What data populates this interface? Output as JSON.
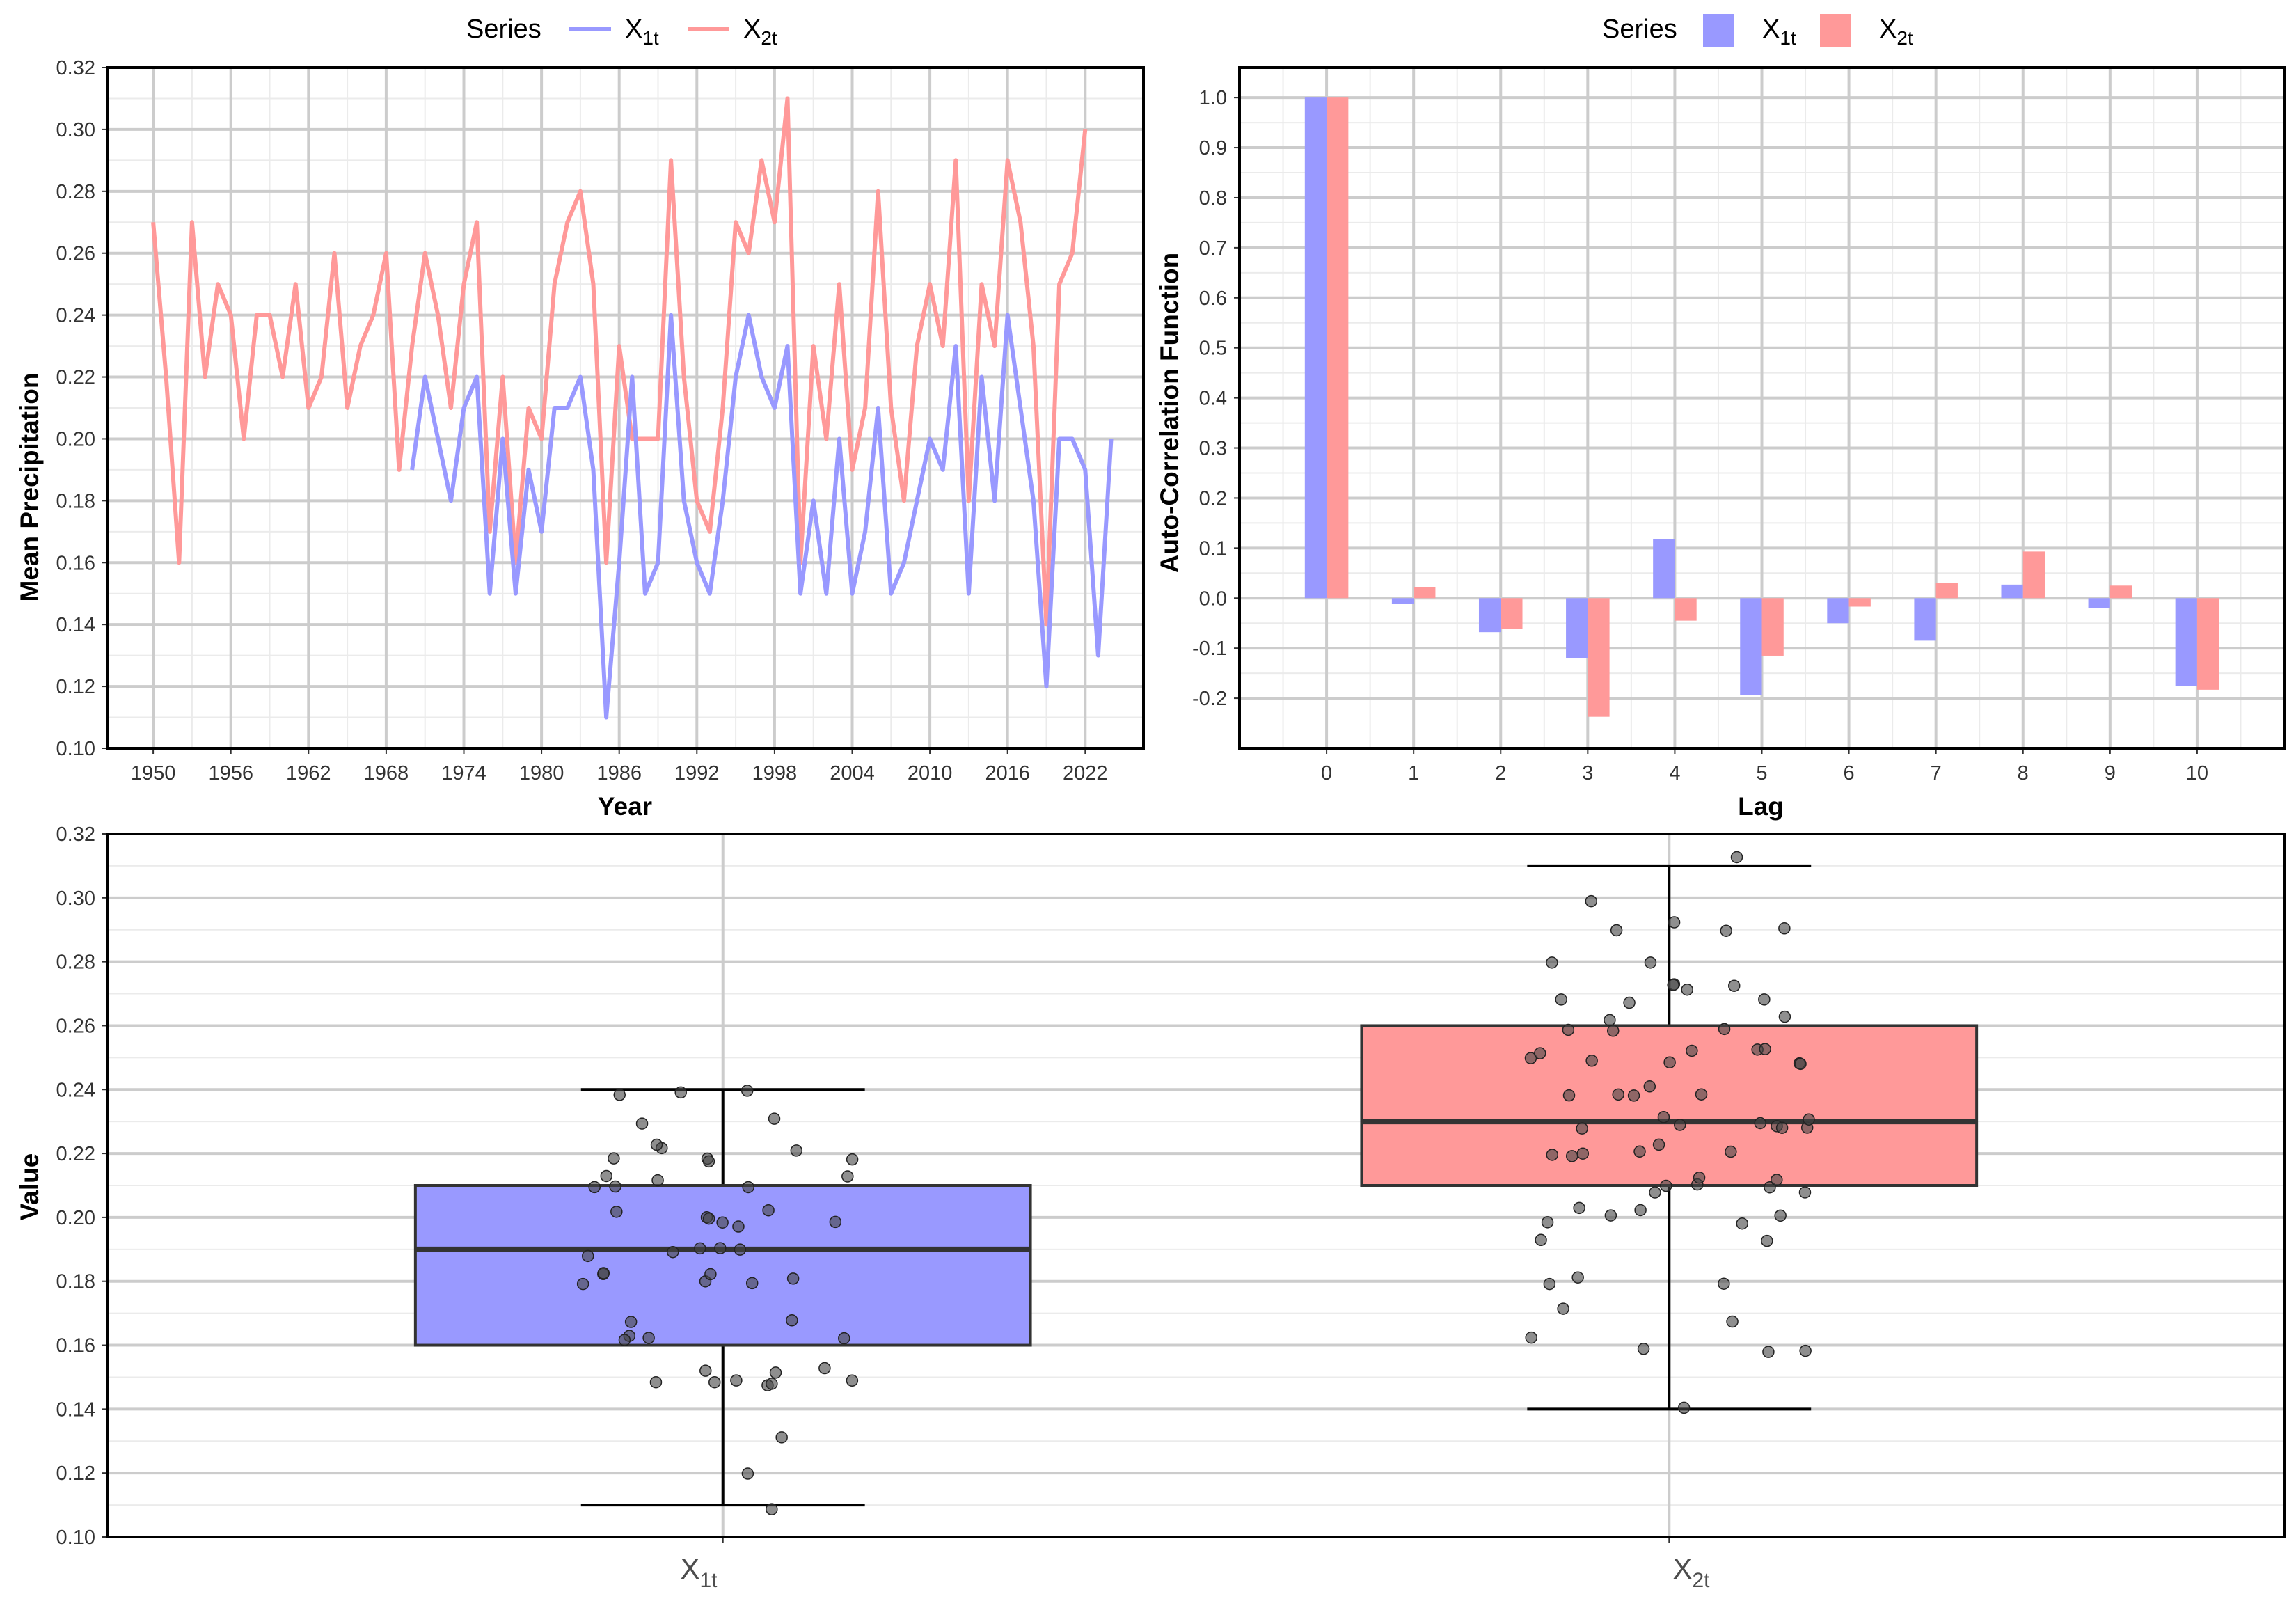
{
  "colors": {
    "x1": "#9999ff",
    "x2": "#ff9999",
    "grid_major": "#cccccc",
    "grid_minor": "#ebebeb",
    "frame": "#000000",
    "point": "#444444"
  },
  "legend": {
    "title": "Series",
    "entries": [
      {
        "base": "X",
        "sub": "1t"
      },
      {
        "base": "X",
        "sub": "2t"
      }
    ]
  },
  "chart_data": [
    {
      "type": "line",
      "id": "timeseries",
      "title": "",
      "xlabel": "Year",
      "ylabel": "Mean Precipitation",
      "xlim": [
        1946.5,
        2026.5
      ],
      "ylim": [
        0.1,
        0.32
      ],
      "xticks": [
        1950,
        1956,
        1962,
        1968,
        1974,
        1980,
        1986,
        1992,
        1998,
        2004,
        2010,
        2016,
        2022
      ],
      "yticks": [
        0.1,
        0.12,
        0.14,
        0.16,
        0.18,
        0.2,
        0.22,
        0.24,
        0.26,
        0.28,
        0.3,
        0.32
      ],
      "series": [
        {
          "name": "X1t",
          "color": "#9999ff",
          "x": [
            1970,
            1971,
            1972,
            1973,
            1974,
            1975,
            1976,
            1977,
            1978,
            1979,
            1980,
            1981,
            1982,
            1983,
            1984,
            1985,
            1986,
            1987,
            1988,
            1989,
            1990,
            1991,
            1992,
            1993,
            1994,
            1995,
            1996,
            1997,
            1998,
            1999,
            2000,
            2001,
            2002,
            2003,
            2004,
            2005,
            2006,
            2007,
            2008,
            2009,
            2010,
            2011,
            2012,
            2013,
            2014,
            2015,
            2016,
            2017,
            2018,
            2019,
            2020,
            2021,
            2022,
            2023,
            2024
          ],
          "values": [
            0.19,
            0.22,
            0.2,
            0.18,
            0.21,
            0.22,
            0.15,
            0.2,
            0.15,
            0.19,
            0.17,
            0.21,
            0.21,
            0.22,
            0.19,
            0.11,
            0.16,
            0.22,
            0.15,
            0.16,
            0.24,
            0.18,
            0.16,
            0.15,
            0.18,
            0.22,
            0.24,
            0.22,
            0.21,
            0.23,
            0.15,
            0.18,
            0.15,
            0.2,
            0.15,
            0.17,
            0.21,
            0.15,
            0.16,
            0.18,
            0.2,
            0.19,
            0.23,
            0.15,
            0.22,
            0.18,
            0.24,
            0.21,
            0.18,
            0.12,
            0.2,
            0.2,
            0.19,
            0.13,
            0.2
          ]
        },
        {
          "name": "X2t",
          "color": "#ff9999",
          "x": [
            1950,
            1951,
            1952,
            1953,
            1954,
            1955,
            1956,
            1957,
            1958,
            1959,
            1960,
            1961,
            1962,
            1963,
            1964,
            1965,
            1966,
            1967,
            1968,
            1969,
            1970,
            1971,
            1972,
            1973,
            1974,
            1975,
            1976,
            1977,
            1978,
            1979,
            1980,
            1981,
            1982,
            1983,
            1984,
            1985,
            1986,
            1987,
            1988,
            1989,
            1990,
            1991,
            1992,
            1993,
            1994,
            1995,
            1996,
            1997,
            1998,
            1999,
            2000,
            2001,
            2002,
            2003,
            2004,
            2005,
            2006,
            2007,
            2008,
            2009,
            2010,
            2011,
            2012,
            2013,
            2014,
            2015,
            2016,
            2017,
            2018,
            2019,
            2020,
            2021,
            2022
          ],
          "values": [
            0.27,
            0.22,
            0.16,
            0.27,
            0.22,
            0.25,
            0.24,
            0.2,
            0.24,
            0.24,
            0.22,
            0.25,
            0.21,
            0.22,
            0.26,
            0.21,
            0.23,
            0.24,
            0.26,
            0.19,
            0.23,
            0.26,
            0.24,
            0.21,
            0.25,
            0.27,
            0.17,
            0.22,
            0.16,
            0.21,
            0.2,
            0.25,
            0.27,
            0.28,
            0.25,
            0.16,
            0.23,
            0.2,
            0.2,
            0.2,
            0.29,
            0.22,
            0.18,
            0.17,
            0.21,
            0.27,
            0.26,
            0.29,
            0.27,
            0.31,
            0.16,
            0.23,
            0.2,
            0.25,
            0.19,
            0.21,
            0.28,
            0.21,
            0.18,
            0.23,
            0.25,
            0.23,
            0.29,
            0.18,
            0.25,
            0.23,
            0.29,
            0.27,
            0.23,
            0.14,
            0.25,
            0.26,
            0.3
          ]
        }
      ]
    },
    {
      "type": "bar",
      "id": "acf",
      "title": "",
      "xlabel": "Lag",
      "ylabel": "Auto-Correlation Function",
      "ylim": [
        -0.3,
        1.06
      ],
      "categories": [
        "0",
        "1",
        "2",
        "3",
        "4",
        "5",
        "6",
        "7",
        "8",
        "9",
        "10"
      ],
      "yticks": [
        -0.2,
        -0.1,
        0.0,
        0.1,
        0.2,
        0.3,
        0.4,
        0.5,
        0.6,
        0.7,
        0.8,
        0.9,
        1.0
      ],
      "series": [
        {
          "name": "X1t",
          "color": "#9999ff",
          "values": [
            1.0,
            -0.012,
            -0.068,
            -0.12,
            0.118,
            -0.193,
            -0.05,
            -0.085,
            0.027,
            -0.02,
            -0.175
          ]
        },
        {
          "name": "X2t",
          "color": "#ff9999",
          "values": [
            1.0,
            0.022,
            -0.062,
            -0.237,
            -0.045,
            -0.115,
            -0.017,
            0.03,
            0.093,
            0.025,
            -0.183
          ]
        }
      ]
    },
    {
      "type": "box",
      "id": "boxplot",
      "title": "",
      "xlabel": "",
      "ylabel": "Value",
      "ylim": [
        0.1,
        0.32
      ],
      "yticks": [
        0.1,
        0.12,
        0.14,
        0.16,
        0.18,
        0.2,
        0.22,
        0.24,
        0.26,
        0.28,
        0.3,
        0.32
      ],
      "categories": [
        {
          "base": "X",
          "sub": "1t"
        },
        {
          "base": "X",
          "sub": "2t"
        }
      ],
      "boxes": [
        {
          "name": "X1t",
          "color": "#9999ff",
          "min": 0.11,
          "q1": 0.16,
          "median": 0.19,
          "q3": 0.21,
          "max": 0.24
        },
        {
          "name": "X2t",
          "color": "#ff9999",
          "min": 0.14,
          "q1": 0.21,
          "median": 0.23,
          "q3": 0.26,
          "max": 0.31
        }
      ],
      "points_note": "jittered observations equal the series values of the time-series chart"
    }
  ]
}
